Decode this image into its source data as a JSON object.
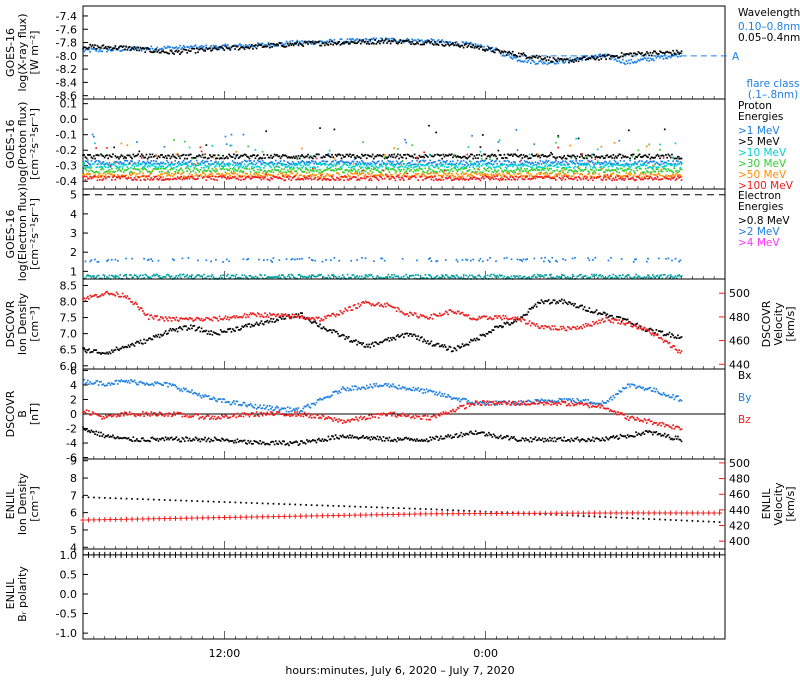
{
  "colors": {
    "black": "#000000",
    "blue": "#1f7fe0",
    "cyan": "#00d0d0",
    "green": "#33cc33",
    "orange": "#ff8c00",
    "red": "#ee1c1c",
    "magenta": "#ff33ff",
    "lightblue": "#3399ff"
  },
  "footer": {
    "xlabel": "hours:minutes,  July  6, 2020 – July  7, 2020"
  },
  "x_axis": {
    "tick_labels": [
      "12:00",
      "0:00"
    ]
  },
  "chart_data": [
    {
      "id": "xray",
      "type": "scatter",
      "ylabel": [
        "GOES-16",
        "log(X-ray flux)",
        "[W m⁻²]"
      ],
      "yticks": [
        "-7.4",
        "-7.6",
        "-7.8",
        "-8.0",
        "-8.2",
        "-8.4",
        "-8.6"
      ],
      "ylim": [
        -8.65,
        -7.25
      ],
      "legend": {
        "title": "Wavelength",
        "items": [
          {
            "label": "0.10–0.8nm",
            "color": "#1f7fe0"
          },
          {
            "label": "0.05–0.4nm",
            "color": "#000000"
          }
        ]
      },
      "flare": {
        "marker": "A",
        "caption": [
          "flare class",
          "(.1–.8nm)"
        ],
        "value": -8.0
      },
      "series": [
        {
          "name": "0.10–0.8nm",
          "color": "#1f7fe0",
          "x": [
            0,
            2,
            4,
            6,
            8,
            10,
            12,
            14,
            16,
            18,
            19,
            20,
            21,
            22,
            23,
            24,
            25,
            26,
            27.5
          ],
          "y": [
            -7.92,
            -7.9,
            -7.88,
            -7.87,
            -7.84,
            -7.8,
            -7.78,
            -7.76,
            -7.78,
            -7.84,
            -7.92,
            -8.05,
            -8.1,
            -8.08,
            -8.03,
            -8.0,
            -8.1,
            -8.05,
            -7.97
          ]
        },
        {
          "name": "0.05–0.4nm",
          "color": "#000000",
          "x": [
            0,
            2,
            4,
            6,
            8,
            10,
            12,
            14,
            16,
            18,
            19,
            20,
            21,
            22,
            23,
            24,
            25,
            26,
            27.5
          ],
          "y": [
            -7.86,
            -7.88,
            -7.95,
            -7.9,
            -7.86,
            -7.82,
            -7.8,
            -7.78,
            -7.8,
            -7.86,
            -7.93,
            -7.98,
            -8.02,
            -8.08,
            -8.05,
            -8.02,
            -7.98,
            -7.96,
            -7.95
          ]
        }
      ]
    },
    {
      "id": "proton",
      "type": "scatter",
      "ylabel": [
        "GOES-16",
        "log(Proton flux)",
        "[cm⁻²s⁻¹sr⁻¹]"
      ],
      "yticks": [
        "0.1",
        "0.0",
        "-0.1",
        "-0.2",
        "-0.3",
        "-0.4"
      ],
      "ylim": [
        -0.45,
        0.13
      ],
      "legend": {
        "title": [
          "Proton",
          "Energies"
        ],
        "items": [
          {
            "label": ">1 MeV",
            "color": "#1f7fe0"
          },
          {
            "label": ">5 MeV",
            "color": "#000000"
          },
          {
            "label": ">10 MeV",
            "color": "#00d0d0"
          },
          {
            "label": ">30 MeV",
            "color": "#33cc33"
          },
          {
            "label": ">50 MeV",
            "color": "#ff8c00"
          },
          {
            "label": ">100 MeV",
            "color": "#ee1c1c"
          }
        ]
      },
      "series": [
        {
          "name": ">1 MeV",
          "color": "#1f7fe0",
          "x": [
            0,
            27.5
          ],
          "y": [
            -0.28,
            -0.28
          ]
        },
        {
          "name": ">5 MeV",
          "color": "#000000",
          "x": [
            0,
            27.5
          ],
          "y": [
            -0.24,
            -0.24
          ]
        },
        {
          "name": ">10 MeV",
          "color": "#00d0d0",
          "x": [
            0,
            27.5
          ],
          "y": [
            -0.3,
            -0.3
          ]
        },
        {
          "name": ">30 MeV",
          "color": "#33cc33",
          "x": [
            0,
            27.5
          ],
          "y": [
            -0.33,
            -0.33
          ]
        },
        {
          "name": ">50 MeV",
          "color": "#ff8c00",
          "x": [
            0,
            27.5
          ],
          "y": [
            -0.36,
            -0.36
          ]
        },
        {
          "name": ">100 MeV",
          "color": "#ee1c1c",
          "x": [
            0,
            27.5
          ],
          "y": [
            -0.38,
            -0.38
          ]
        }
      ]
    },
    {
      "id": "electron",
      "type": "scatter",
      "ylabel": [
        "GOES-16",
        "log(Electron flux)",
        "[cm⁻²s⁻¹sr⁻¹]"
      ],
      "yticks": [
        "5",
        "4",
        "3",
        "2",
        "1"
      ],
      "ylim": [
        0.6,
        5.3
      ],
      "threshold": 5.0,
      "legend": {
        "title": [
          "Electron",
          "Energies"
        ],
        "items": [
          {
            "label": ">0.8 MeV",
            "color": "#000000"
          },
          {
            "label": ">2 MeV",
            "color": "#1f7fe0"
          },
          {
            "label": ">4 MeV",
            "color": "#ff33ff"
          }
        ]
      },
      "series": [
        {
          "name": ">2 MeV",
          "color": "#1f7fe0",
          "x": [
            0,
            27.5
          ],
          "y": [
            1.6,
            1.6
          ]
        },
        {
          "name": ">0.8 MeV",
          "color": "#00a0a0",
          "x": [
            0,
            27.5
          ],
          "y": [
            0.72,
            0.72
          ]
        }
      ]
    },
    {
      "id": "dscovr_density",
      "type": "scatter",
      "ylabel": [
        "DSCOVR",
        "Ion Density",
        "[cm⁻³]"
      ],
      "yticks": [
        "8.5",
        "8.0",
        "7.5",
        "7.0",
        "6.5",
        "6.0"
      ],
      "ylim": [
        5.9,
        8.7
      ],
      "y2label": [
        "DSCOVR",
        "Velocity",
        "[km/s]"
      ],
      "y2ticks": [
        "500",
        "480",
        "460",
        "440"
      ],
      "y2lim": [
        436,
        512
      ],
      "series": [
        {
          "name": "density",
          "color": "#000000",
          "x": [
            0,
            1,
            2,
            3,
            4,
            5,
            6,
            8,
            10,
            11,
            12,
            13,
            14,
            15,
            16,
            17,
            18,
            19,
            20,
            21,
            22,
            23,
            24,
            25,
            26,
            27.5
          ],
          "y": [
            6.5,
            6.4,
            6.6,
            6.8,
            7.1,
            7.2,
            7.0,
            7.3,
            7.6,
            7.2,
            6.9,
            6.6,
            6.8,
            7.0,
            6.7,
            6.5,
            6.8,
            7.2,
            7.4,
            8.0,
            8.0,
            7.8,
            7.6,
            7.4,
            7.1,
            6.9
          ]
        },
        {
          "name": "velocity",
          "color": "#ee1c1c",
          "axis": "y2",
          "x": [
            0,
            1,
            2,
            3,
            4,
            5,
            6,
            8,
            10,
            11,
            12,
            13,
            14,
            15,
            16,
            17,
            18,
            19,
            20,
            21,
            22,
            23,
            24,
            25,
            26,
            27.5
          ],
          "y": [
            495,
            500,
            498,
            480,
            478,
            478,
            478,
            482,
            480,
            478,
            485,
            492,
            490,
            482,
            480,
            485,
            478,
            480,
            478,
            472,
            470,
            472,
            478,
            475,
            468,
            450
          ]
        }
      ]
    },
    {
      "id": "dscovr_b",
      "type": "scatter",
      "ylabel": [
        "DSCOVR",
        "B",
        "[nT]"
      ],
      "yticks": [
        "6",
        "4",
        "2",
        "0",
        "-2",
        "-4",
        "-6"
      ],
      "ylim": [
        -6.2,
        6.2
      ],
      "zero_line": 0,
      "legend": {
        "items": [
          {
            "label": "Bx",
            "color": "#000000"
          },
          {
            "label": "By",
            "color": "#1f7fe0"
          },
          {
            "label": "Bz",
            "color": "#ee1c1c"
          }
        ]
      },
      "series": [
        {
          "name": "Bx",
          "color": "#000000",
          "x": [
            0,
            1,
            2,
            4,
            6,
            8,
            10,
            12,
            14,
            16,
            18,
            20,
            22,
            24,
            25,
            26,
            27.5
          ],
          "y": [
            -2.0,
            -3.0,
            -3.5,
            -3.5,
            -3.5,
            -4.0,
            -4.0,
            -3.0,
            -3.5,
            -3.5,
            -2.5,
            -3.5,
            -3.5,
            -3.5,
            -3.0,
            -2.5,
            -3.5
          ]
        },
        {
          "name": "By",
          "color": "#1f7fe0",
          "x": [
            0,
            1,
            2,
            4,
            6,
            8,
            10,
            12,
            14,
            16,
            18,
            20,
            22,
            24,
            25,
            26,
            27.5
          ],
          "y": [
            4.5,
            4.2,
            4.5,
            4.0,
            2.0,
            1.0,
            0.5,
            3.5,
            4.0,
            3.0,
            1.5,
            1.5,
            2.0,
            1.5,
            4.0,
            3.5,
            2.0
          ]
        },
        {
          "name": "Bz",
          "color": "#ee1c1c",
          "x": [
            0,
            1,
            2,
            4,
            6,
            8,
            10,
            12,
            14,
            16,
            18,
            20,
            22,
            24,
            25,
            26,
            27.5
          ],
          "y": [
            0.5,
            -0.5,
            0.0,
            0.0,
            -0.5,
            0.0,
            0.0,
            -1.0,
            0.0,
            -0.5,
            1.5,
            1.5,
            1.5,
            1.0,
            -0.5,
            -1.0,
            -2.0
          ]
        }
      ]
    },
    {
      "id": "enlil_density",
      "type": "line",
      "ylabel": [
        "ENLIL",
        "Ion Density",
        "[cm⁻³]"
      ],
      "yticks": [
        "9",
        "8",
        "7",
        "6",
        "5",
        "4"
      ],
      "ylim": [
        3.9,
        9.1
      ],
      "y2label": [
        "ENLIL",
        "Velocity",
        "[km/s]"
      ],
      "y2ticks": [
        "500",
        "480",
        "460",
        "440",
        "420",
        "400"
      ],
      "y2lim": [
        390,
        505
      ],
      "series": [
        {
          "name": "density",
          "color": "#000000",
          "x": [
            0,
            8,
            16,
            24,
            29.4
          ],
          "y": [
            6.9,
            6.55,
            6.2,
            5.75,
            5.45
          ]
        },
        {
          "name": "velocity",
          "color": "#ee1c1c",
          "axis": "y2",
          "x": [
            0,
            8,
            16,
            24,
            29.4
          ],
          "y": [
            427,
            431,
            435,
            436,
            436
          ]
        }
      ]
    },
    {
      "id": "enlil_polarity",
      "type": "line",
      "ylabel": [
        "ENLIL",
        "Bᵣ polarity"
      ],
      "yticks": [
        "1.0",
        "0.5",
        "0.0",
        "-0.5",
        "-1.0"
      ],
      "ylim": [
        -1.15,
        1.15
      ],
      "series": [
        {
          "name": "polarity",
          "color": "#000000",
          "x": [
            0,
            29.4
          ],
          "y": [
            1.0,
            1.0
          ]
        }
      ]
    }
  ]
}
